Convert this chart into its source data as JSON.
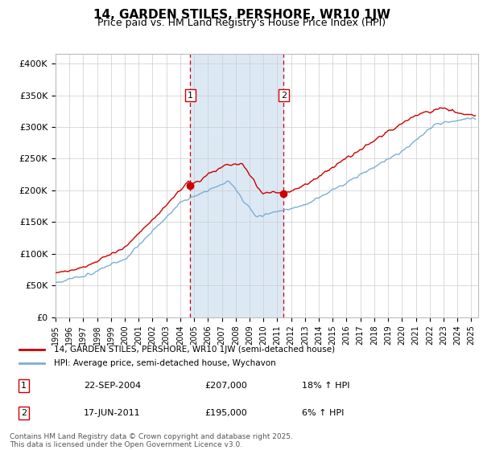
{
  "title": "14, GARDEN STILES, PERSHORE, WR10 1JW",
  "subtitle": "Price paid vs. HM Land Registry's House Price Index (HPI)",
  "ylabel_ticks": [
    "£0",
    "£50K",
    "£100K",
    "£150K",
    "£200K",
    "£250K",
    "£300K",
    "£350K",
    "£400K"
  ],
  "ytick_values": [
    0,
    50000,
    100000,
    150000,
    200000,
    250000,
    300000,
    350000,
    400000
  ],
  "ylim": [
    0,
    415000
  ],
  "xlim_start": 1995.0,
  "xlim_end": 2025.5,
  "xtick_years": [
    1995,
    1996,
    1997,
    1998,
    1999,
    2000,
    2001,
    2002,
    2003,
    2004,
    2005,
    2006,
    2007,
    2008,
    2009,
    2010,
    2011,
    2012,
    2013,
    2014,
    2015,
    2016,
    2017,
    2018,
    2019,
    2020,
    2021,
    2022,
    2023,
    2024,
    2025
  ],
  "purchase1_x": 2004.73,
  "purchase1_y": 207000,
  "purchase2_x": 2011.46,
  "purchase2_y": 195000,
  "shade_color": "#dce9f5",
  "vline_color": "#cc0000",
  "legend_line1": "14, GARDEN STILES, PERSHORE, WR10 1JW (semi-detached house)",
  "legend_line2": "HPI: Average price, semi-detached house, Wychavon",
  "table_row1": [
    "1",
    "22-SEP-2004",
    "£207,000",
    "18% ↑ HPI"
  ],
  "table_row2": [
    "2",
    "17-JUN-2011",
    "£195,000",
    "6% ↑ HPI"
  ],
  "footer": "Contains HM Land Registry data © Crown copyright and database right 2025.\nThis data is licensed under the Open Government Licence v3.0.",
  "line_color_red": "#cc0000",
  "line_color_blue": "#7bafd4",
  "background_color": "#ffffff",
  "title_fontsize": 11,
  "subtitle_fontsize": 9
}
